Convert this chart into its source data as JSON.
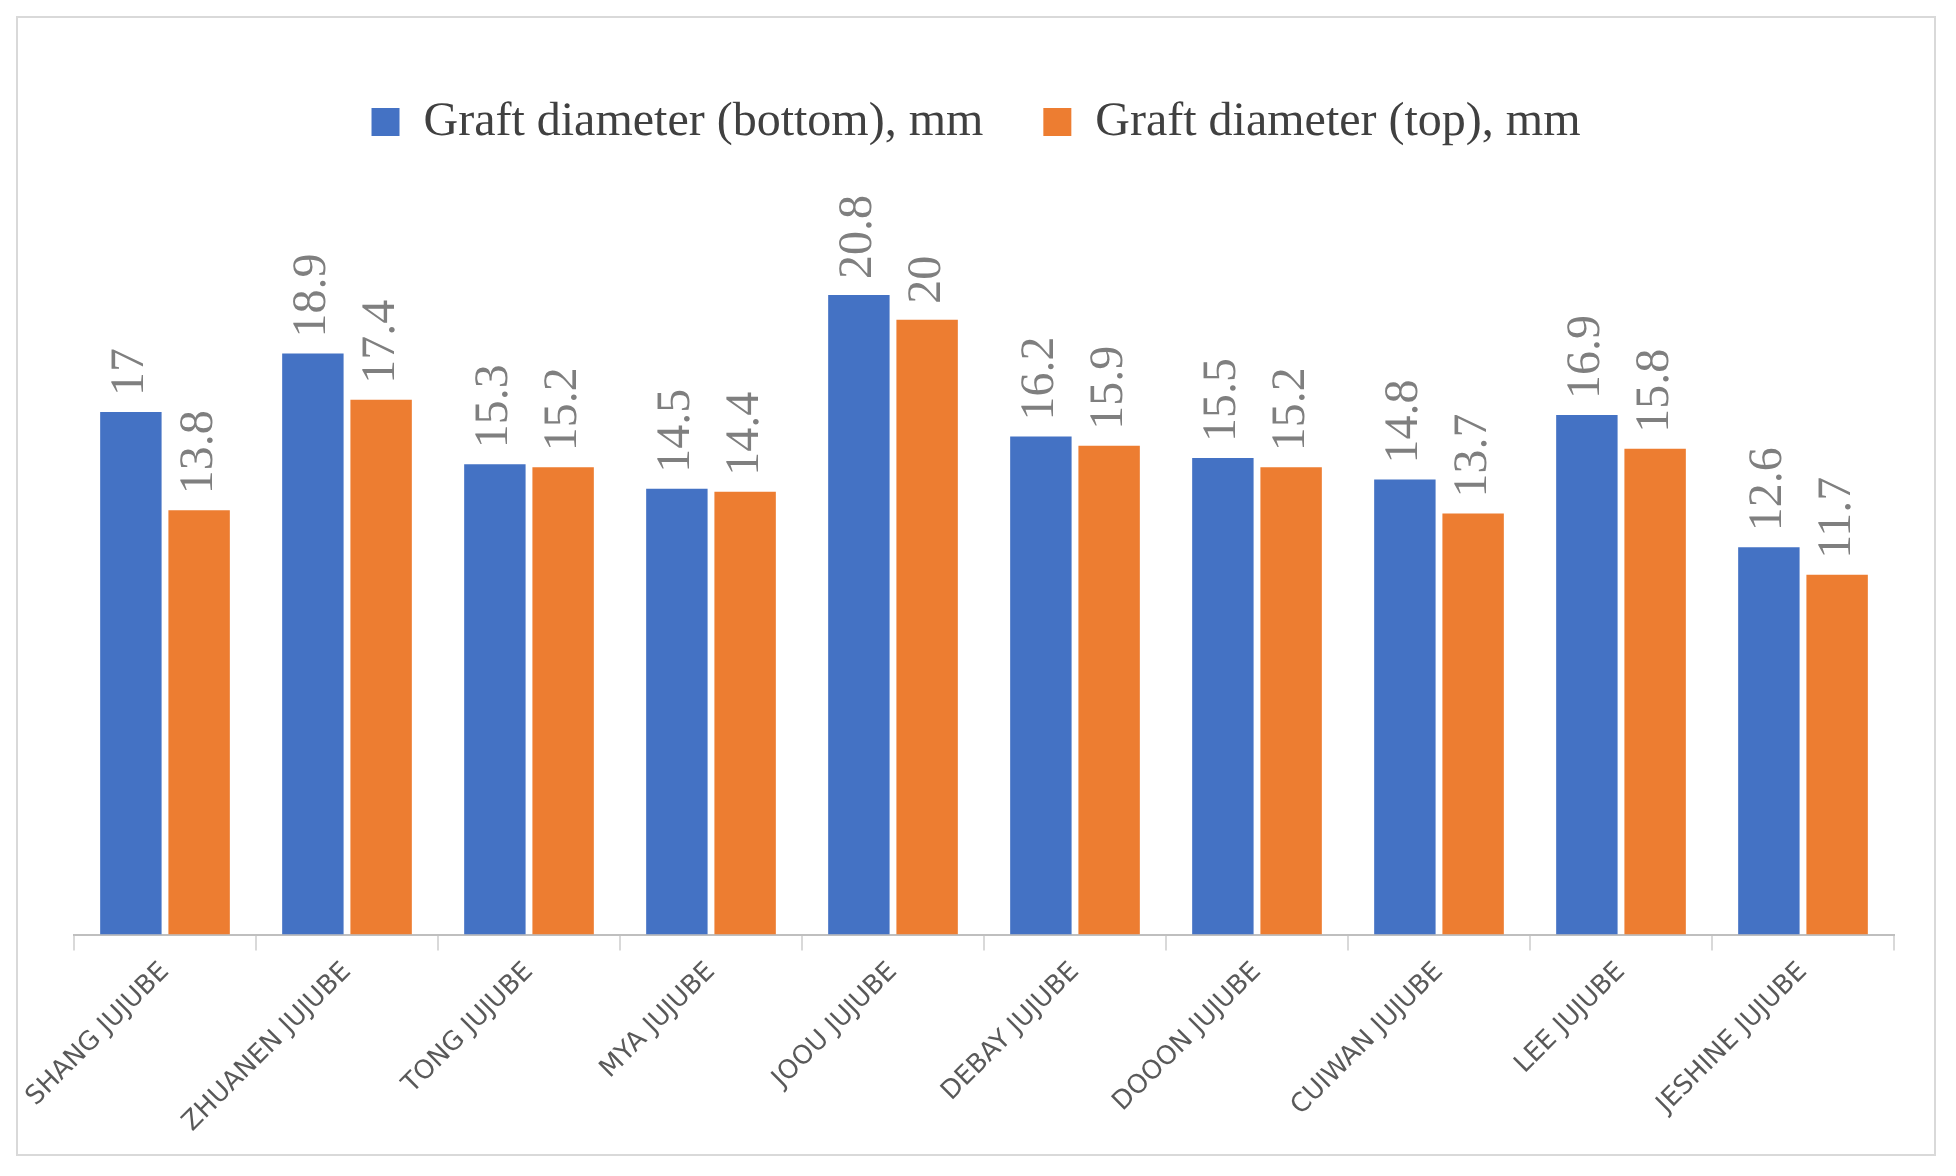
{
  "chart_data": {
    "type": "bar",
    "categories": [
      "SHANG JUJUBE",
      "ZHUANEN JUJUBE",
      "TONG JUJUBE",
      "MYA JUJUBE",
      "JOOU JUJUBE",
      "DEBAY JUJUBE",
      "DOOON JUJUBE",
      "CUIWAN JUJUBE",
      "LEE JUJUBE",
      "JESHINE JUJUBE"
    ],
    "series": [
      {
        "name": "Graft diameter (bottom), mm",
        "color": "#4472c4",
        "values": [
          17,
          18.9,
          15.3,
          14.5,
          20.8,
          16.2,
          15.5,
          14.8,
          16.9,
          12.6
        ]
      },
      {
        "name": "Graft diameter (top), mm",
        "color": "#ed7d31",
        "values": [
          13.8,
          17.4,
          15.2,
          14.4,
          20,
          15.9,
          15.2,
          13.7,
          15.8,
          11.7
        ]
      }
    ],
    "tick_labels": "x",
    "data_labels": true,
    "legend": "top",
    "grid": false
  }
}
